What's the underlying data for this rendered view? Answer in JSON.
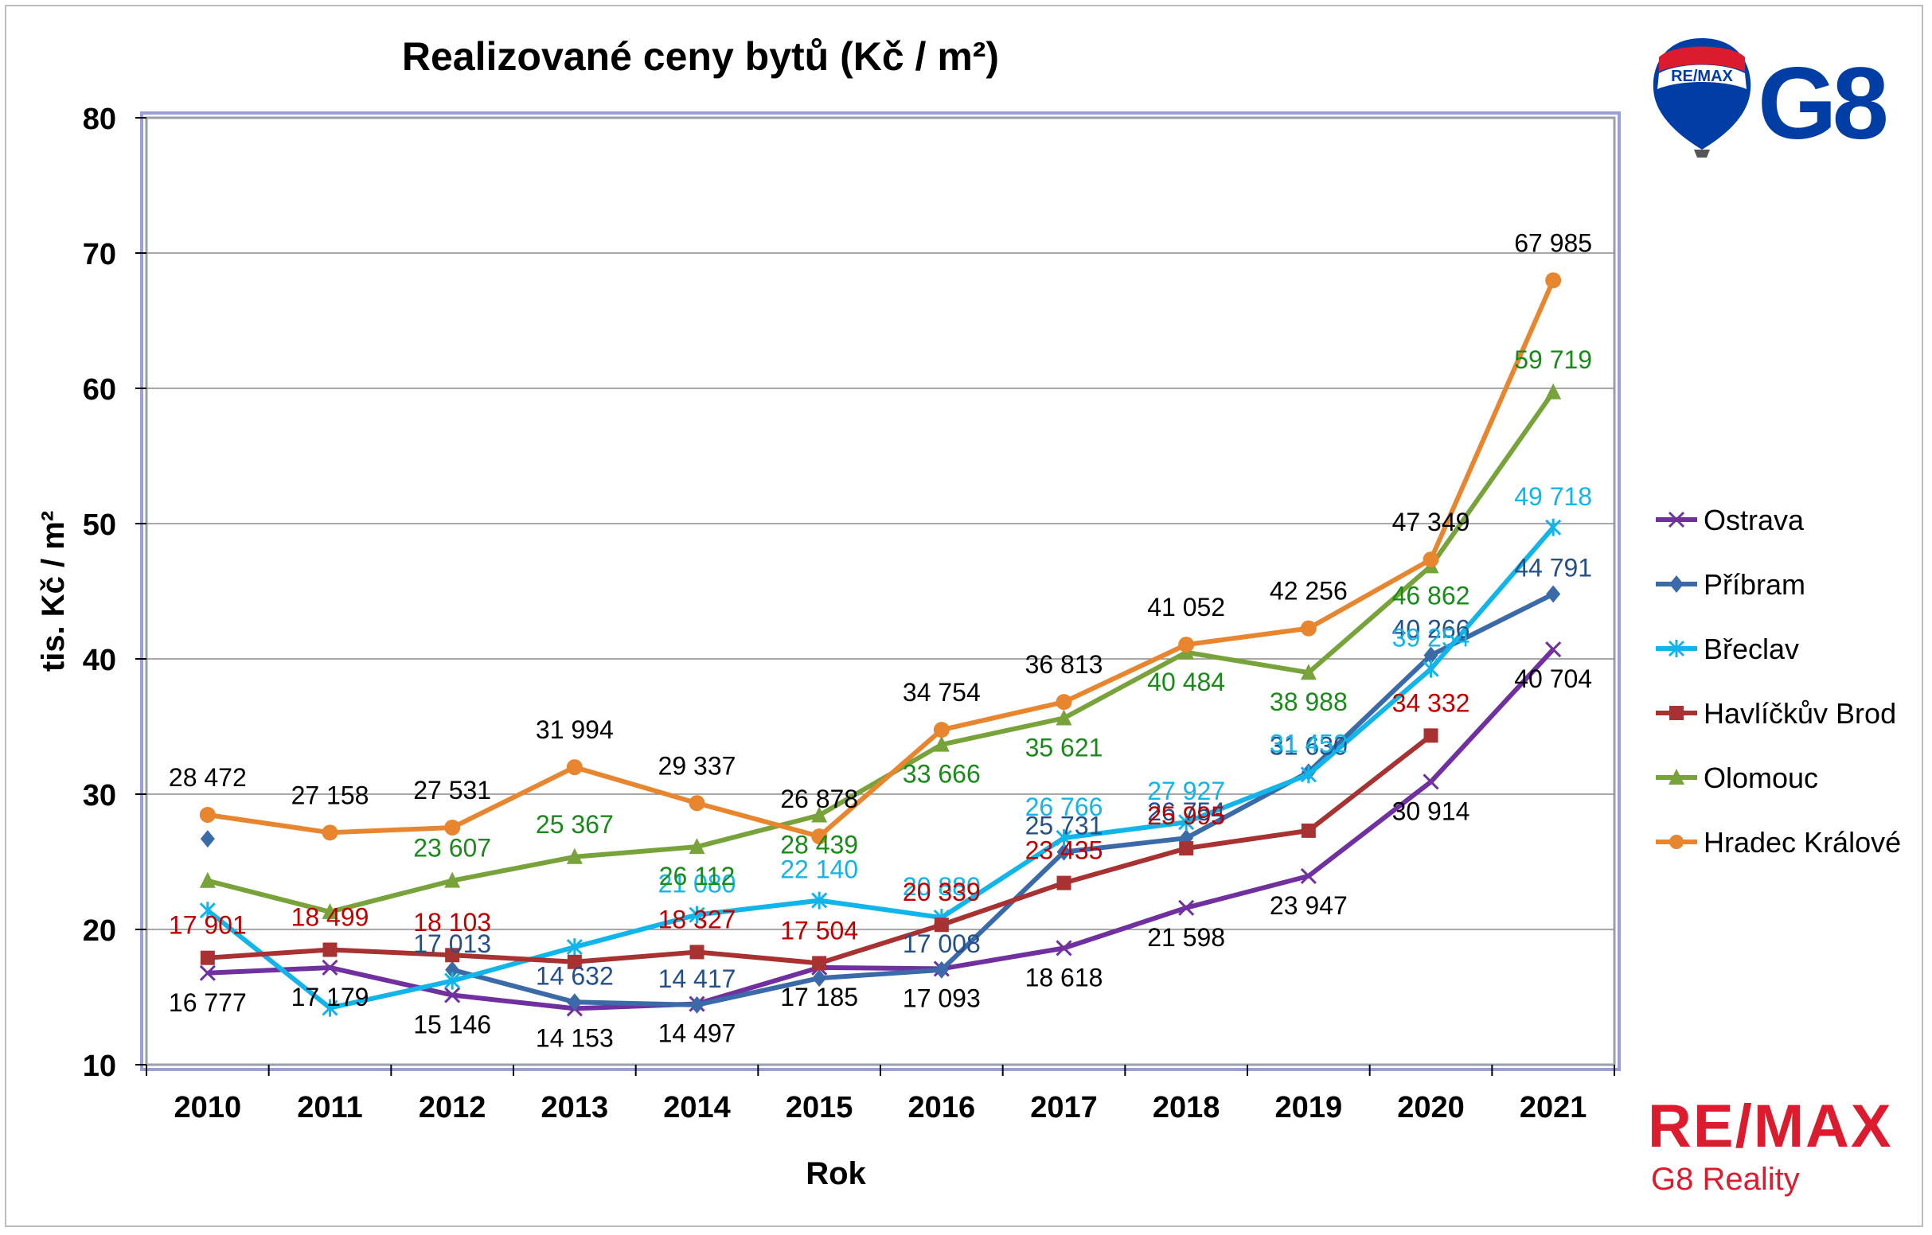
{
  "chart_data": {
    "type": "line",
    "title": "Realizované ceny bytů (Kč / m²)",
    "xlabel": "Rok",
    "ylabel": "tis. Kč / m²",
    "ylim": [
      10,
      80
    ],
    "yticks": [
      "10",
      "20",
      "30",
      "40",
      "50",
      "60",
      "70",
      "80"
    ],
    "categories": [
      "2010",
      "2011",
      "2012",
      "2013",
      "2014",
      "2015",
      "2016",
      "2017",
      "2018",
      "2019",
      "2020",
      "2021"
    ],
    "grid": true,
    "legend_position": "right",
    "series": [
      {
        "name": "Ostrava",
        "color": "#7030a0",
        "label_color": "#000000",
        "marker": "x",
        "values": [
          16.777,
          17.179,
          15.146,
          14.153,
          14.497,
          17.185,
          17.093,
          18.618,
          21.598,
          23.947,
          30.914,
          40.704
        ],
        "labels": [
          "16 777",
          "17 179",
          "15 146",
          "14 153",
          "14 497",
          "17 185",
          "17 093",
          "18 618",
          "21 598",
          "23 947",
          "30 914",
          "40 704"
        ]
      },
      {
        "name": "Příbram",
        "color": "#3a6aa8",
        "label_color": "#24508a",
        "marker": "diamond",
        "values": [
          26.7,
          null,
          17.013,
          14.632,
          14.417,
          16.4,
          17.008,
          25.731,
          26.754,
          31.63,
          40.266,
          44.791
        ],
        "labels": [
          "",
          "",
          "17 013",
          "14 632",
          "14 417",
          "",
          "17 008",
          "25 731",
          "26 754",
          "31 630",
          "40 266",
          "44 791"
        ]
      },
      {
        "name": "Břeclav",
        "color": "#12b5ea",
        "label_color": "#12b5ea",
        "marker": "star",
        "values": [
          21.4,
          14.2,
          16.2,
          18.7,
          21.08,
          22.14,
          20.88,
          26.766,
          27.927,
          31.452,
          39.254,
          49.718
        ],
        "labels": [
          "",
          "",
          "",
          "",
          "21 080",
          "22 140",
          "20 880",
          "26 766",
          "27 927",
          "31 452",
          "39 254",
          "49 718"
        ]
      },
      {
        "name": "Havlíčkův Brod",
        "color": "#a83232",
        "label_color": "#c00000",
        "marker": "square",
        "values": [
          17.901,
          18.499,
          18.103,
          17.6,
          18.327,
          17.504,
          20.339,
          23.435,
          25.995,
          27.3,
          34.332,
          null
        ],
        "labels": [
          "17 901",
          "18 499",
          "18 103",
          "",
          "18 327",
          "17 504",
          "20 339",
          "23 435",
          "25 995",
          "",
          "34 332",
          ""
        ]
      },
      {
        "name": "Olomouc",
        "color": "#77a33a",
        "label_color": "#1a8a1a",
        "marker": "triangle",
        "values": [
          23.6,
          21.3,
          23.607,
          25.367,
          26.112,
          28.439,
          33.666,
          35.621,
          40.484,
          38.988,
          46.862,
          59.719
        ],
        "labels": [
          "",
          "",
          "23 607",
          "25 367",
          "26 112",
          "28 439",
          "33 666",
          "35 621",
          "40 484",
          "38 988",
          "46 862",
          "59 719"
        ]
      },
      {
        "name": "Hradec Králové",
        "color": "#e8852f",
        "label_color": "#000000",
        "marker": "circle",
        "values": [
          28.472,
          27.158,
          27.531,
          31.994,
          29.337,
          26.878,
          34.754,
          36.813,
          41.052,
          42.256,
          47.349,
          67.985
        ],
        "labels": [
          "28 472",
          "27 158",
          "27 531",
          "31 994",
          "29 337",
          "26 878",
          "34 754",
          "36 813",
          "41 052",
          "42 256",
          "47 349",
          "67 985"
        ]
      }
    ]
  },
  "branding": {
    "balloon_text": "RE/MAX",
    "g8": "G8",
    "remax": "RE/MAX",
    "reality": "G8 Reality",
    "blue": "#003da5",
    "red": "#dc1c2e"
  }
}
